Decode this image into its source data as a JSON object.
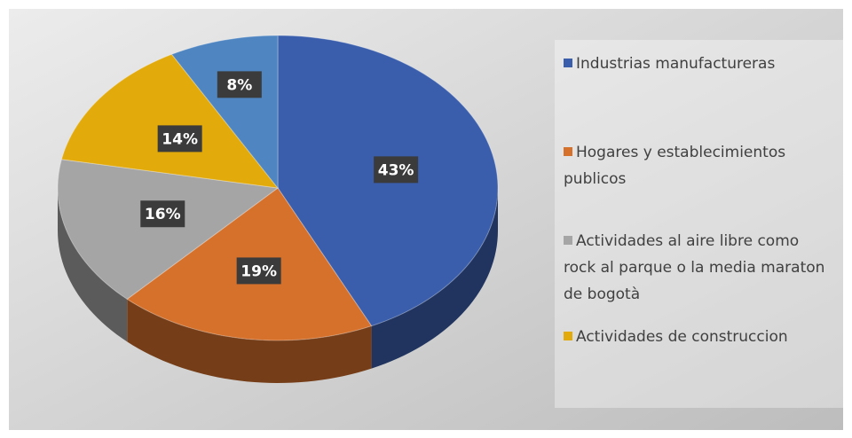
{
  "chart_data": {
    "type": "pie",
    "categories": [
      "Industrias manufactureras",
      "Hogares y establecimientos publicos",
      "Actividades al aire libre como rock al parque o la media maraton de bogotà",
      "Actividades de construccion",
      null
    ],
    "values": [
      43,
      19,
      16,
      14,
      8
    ],
    "value_labels": [
      "43%",
      "19%",
      "16%",
      "14%",
      "8%"
    ],
    "colors": [
      "#3a5eac",
      "#d6712c",
      "#a5a5a5",
      "#e2aa0b",
      "#4f86c2"
    ]
  }
}
